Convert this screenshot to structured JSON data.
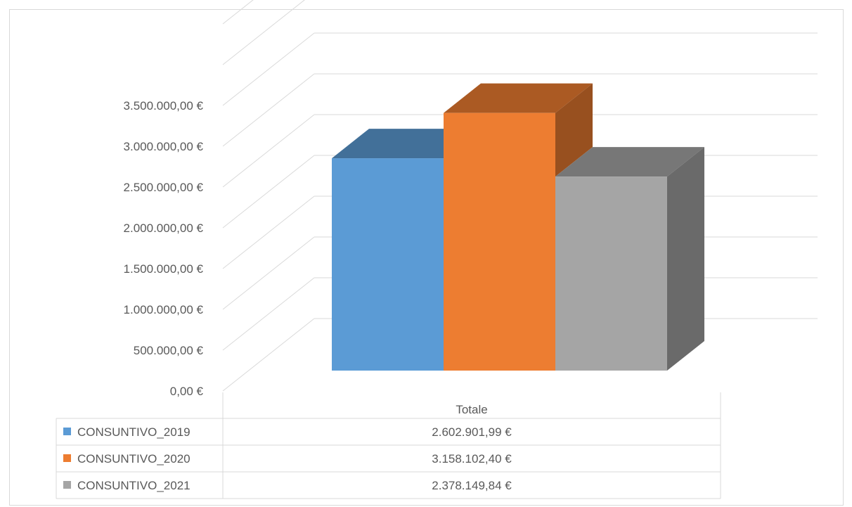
{
  "chart_data": {
    "type": "bar",
    "style": "3d-column-with-data-table",
    "categories": [
      "Totale"
    ],
    "series": [
      {
        "name": "CONSUNTIVO_2019",
        "values": [
          2602901.99
        ],
        "display_value": "2.602.901,99 €",
        "color": "#5b9bd5"
      },
      {
        "name": "CONSUNTIVO_2020",
        "values": [
          3158102.4
        ],
        "display_value": "3.158.102,40 €",
        "color": "#ed7d31"
      },
      {
        "name": "CONSUNTIVO_2021",
        "values": [
          2378149.84
        ],
        "display_value": "2.378.149,84 €",
        "color": "#a5a5a5"
      }
    ],
    "y_ticks": [
      0,
      500000,
      1000000,
      1500000,
      2000000,
      2500000,
      3000000,
      3500000
    ],
    "y_tick_labels": [
      "0,00 €",
      "500.000,00 €",
      "1.000.000,00 €",
      "1.500.000,00 €",
      "2.000.000,00 €",
      "2.500.000,00 €",
      "3.000.000,00 €",
      "3.500.000,00 €"
    ],
    "ylim": [
      0,
      4500000
    ],
    "grid": true,
    "legend": "data-table",
    "title": "",
    "xlabel": "",
    "ylabel": ""
  }
}
